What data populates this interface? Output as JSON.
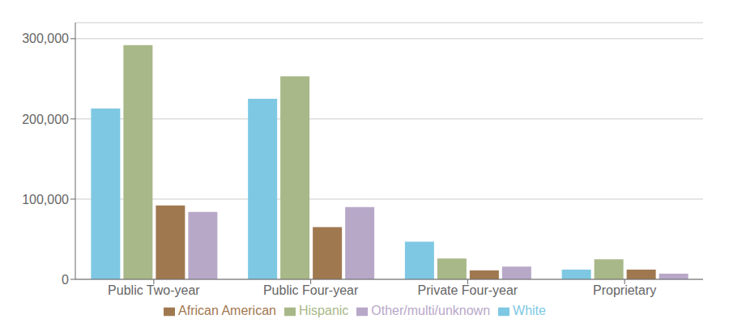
{
  "chart_data": {
    "type": "bar",
    "categories": [
      "Public Two-year",
      "Public Four-year",
      "Private Four-year",
      "Proprietary"
    ],
    "series": [
      {
        "name": "White",
        "color": "#7ec8e3",
        "values": [
          213000,
          225000,
          47000,
          12000
        ]
      },
      {
        "name": "Hispanic",
        "color": "#a8b888",
        "values": [
          292000,
          253000,
          26000,
          25000
        ]
      },
      {
        "name": "African American",
        "color": "#a07850",
        "values": [
          92000,
          65000,
          11000,
          12000
        ]
      },
      {
        "name": "Other/multi/unknown",
        "color": "#b8a8c8",
        "values": [
          84000,
          90000,
          16000,
          7000
        ]
      }
    ],
    "ylim": [
      0,
      320000
    ],
    "yticks": [
      0,
      {
        "value": 100000,
        "label": "100,000"
      },
      {
        "value": 200000,
        "label": "200,000"
      },
      {
        "value": 300000,
        "label": "300,000"
      }
    ],
    "grid": true,
    "legend": "bottom"
  }
}
